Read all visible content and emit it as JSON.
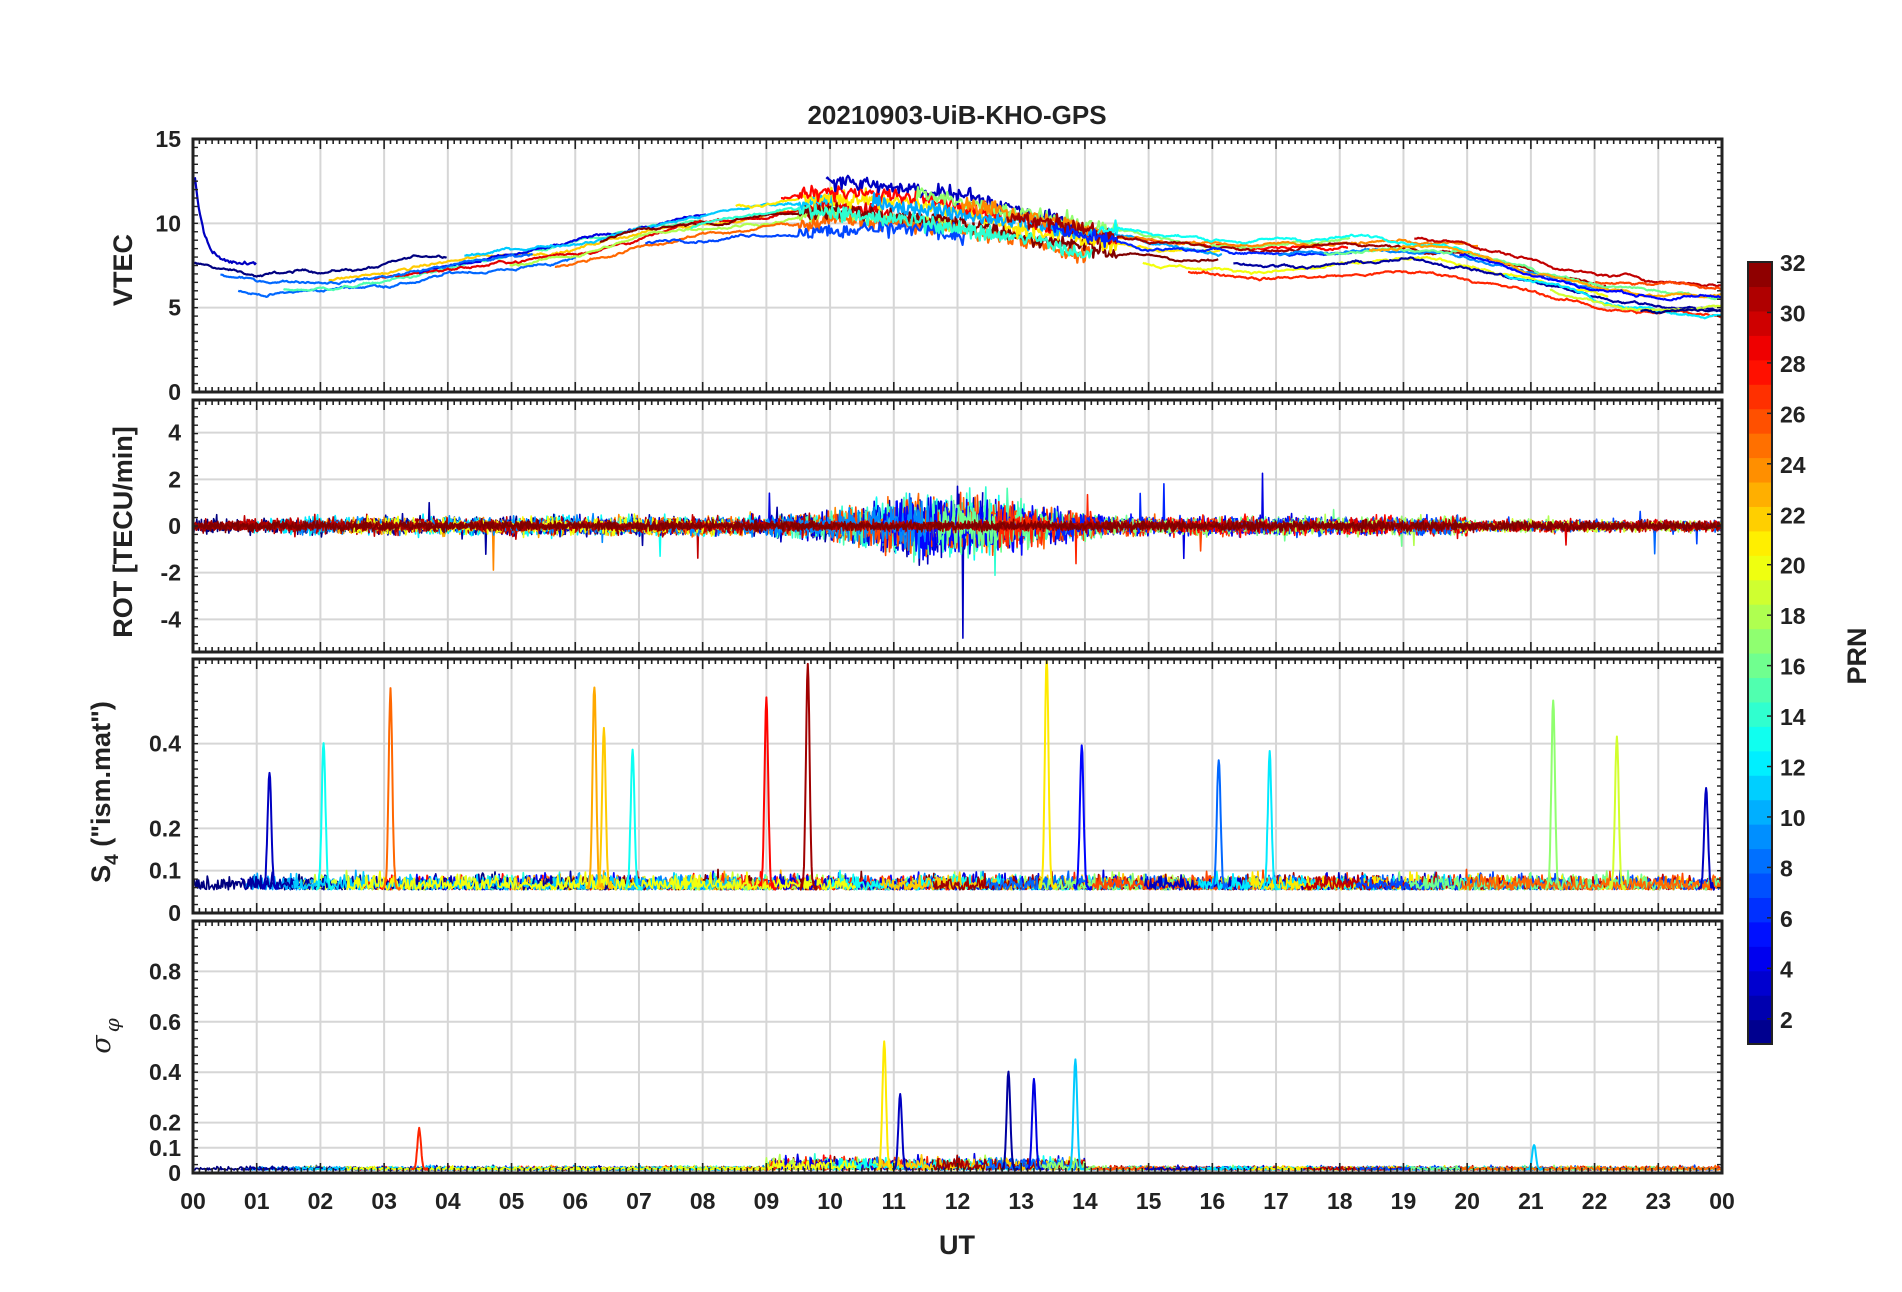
{
  "figure": {
    "title": "20210903-UiB-KHO-GPS",
    "xlabel": "UT",
    "x_tick_labels": [
      "00",
      "01",
      "02",
      "03",
      "04",
      "05",
      "06",
      "07",
      "08",
      "09",
      "10",
      "11",
      "12",
      "13",
      "14",
      "15",
      "16",
      "17",
      "18",
      "19",
      "20",
      "21",
      "22",
      "23",
      "00"
    ]
  },
  "colorbar": {
    "label": "PRN",
    "colormap": "jet",
    "range": [
      1,
      32
    ],
    "tick_labels": [
      "2",
      "4",
      "6",
      "8",
      "10",
      "12",
      "14",
      "16",
      "18",
      "20",
      "22",
      "24",
      "26",
      "28",
      "30",
      "32"
    ],
    "tick_values": [
      2,
      4,
      6,
      8,
      10,
      12,
      14,
      16,
      18,
      20,
      22,
      24,
      26,
      28,
      30,
      32
    ]
  },
  "chart_data": [
    {
      "type": "line",
      "name": "vtec-panel",
      "ylabel": "VTEC",
      "xlim": [
        0,
        24
      ],
      "ylim": [
        0,
        15
      ],
      "ytick_labels": [
        "0",
        "5",
        "10",
        "15"
      ],
      "ytick_values": [
        0,
        5,
        10,
        15
      ],
      "grid": true,
      "series_color_by": "PRN",
      "trend_hours": [
        0,
        1,
        2,
        3,
        4,
        5,
        6,
        7,
        8,
        9,
        10,
        11,
        12,
        13,
        14,
        15,
        16,
        17,
        18,
        19,
        20,
        21,
        22,
        23,
        24
      ],
      "trend_values": [
        7.2,
        6.4,
        6.6,
        7.0,
        7.6,
        8.0,
        8.6,
        9.6,
        10.3,
        10.8,
        11.2,
        10.9,
        10.4,
        9.6,
        8.9,
        8.3,
        8.0,
        8.0,
        8.1,
        8.2,
        7.9,
        7.0,
        6.1,
        5.7,
        5.6
      ]
    },
    {
      "type": "line",
      "name": "rot-panel",
      "ylabel": "ROT [TECU/min]",
      "xlim": [
        0,
        24
      ],
      "ylim": [
        -5.4,
        5.4
      ],
      "ytick_labels": [
        "-4",
        "-2",
        "0",
        "2",
        "4"
      ],
      "ytick_values": [
        -4,
        -2,
        0,
        2,
        4
      ],
      "grid": true,
      "series_color_by": "PRN"
    },
    {
      "type": "line",
      "name": "s4-panel",
      "ylabel_main": "S",
      "ylabel_sub": "4",
      "ylabel_rest": " (\"ism.mat\")",
      "xlim": [
        0,
        24
      ],
      "ylim": [
        0,
        0.6
      ],
      "ytick_labels": [
        "0",
        "0.1",
        "0.2",
        "0.4"
      ],
      "ytick_values": [
        0,
        0.1,
        0.2,
        0.4
      ],
      "grid": true,
      "series_color_by": "PRN",
      "spikes": [
        {
          "t": 1.2,
          "v": 0.33,
          "prn": 3
        },
        {
          "t": 2.05,
          "v": 0.4,
          "prn": 13
        },
        {
          "t": 3.1,
          "v": 0.52,
          "prn": 25
        },
        {
          "t": 6.3,
          "v": 0.53,
          "prn": 23
        },
        {
          "t": 6.45,
          "v": 0.43,
          "prn": 22
        },
        {
          "t": 6.9,
          "v": 0.38,
          "prn": 13
        },
        {
          "t": 9.0,
          "v": 0.5,
          "prn": 28
        },
        {
          "t": 9.65,
          "v": 0.58,
          "prn": 31
        },
        {
          "t": 13.4,
          "v": 0.6,
          "prn": 21
        },
        {
          "t": 13.95,
          "v": 0.39,
          "prn": 5
        },
        {
          "t": 16.1,
          "v": 0.36,
          "prn": 8
        },
        {
          "t": 16.9,
          "v": 0.37,
          "prn": 12
        },
        {
          "t": 21.35,
          "v": 0.49,
          "prn": 17
        },
        {
          "t": 22.35,
          "v": 0.41,
          "prn": 19
        },
        {
          "t": 23.75,
          "v": 0.29,
          "prn": 3
        }
      ]
    },
    {
      "type": "line",
      "name": "sigma-phi-panel",
      "ylabel_main": "σ",
      "ylabel_sub": "φ",
      "xlim": [
        0,
        24
      ],
      "ylim": [
        0,
        1.0
      ],
      "ytick_labels": [
        "0",
        "0.1",
        "0.2",
        "0.4",
        "0.6",
        "0.8"
      ],
      "ytick_values": [
        0,
        0.1,
        0.2,
        0.4,
        0.6,
        0.8
      ],
      "grid": true,
      "series_color_by": "PRN",
      "spikes": [
        {
          "t": 10.85,
          "v": 0.52,
          "prn": 21
        },
        {
          "t": 11.1,
          "v": 0.31,
          "prn": 3
        },
        {
          "t": 12.8,
          "v": 0.4,
          "prn": 2
        },
        {
          "t": 13.2,
          "v": 0.37,
          "prn": 4
        },
        {
          "t": 13.85,
          "v": 0.45,
          "prn": 11
        },
        {
          "t": 3.55,
          "v": 0.17,
          "prn": 27
        },
        {
          "t": 21.05,
          "v": 0.11,
          "prn": 11
        }
      ]
    }
  ]
}
